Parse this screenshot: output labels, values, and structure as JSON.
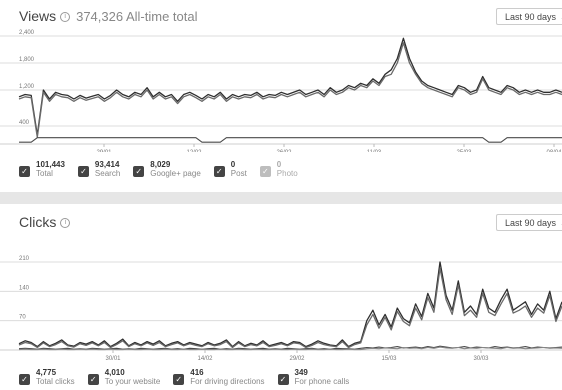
{
  "views": {
    "title": "Views",
    "total_text": "374,326 All-time total",
    "range_label": "Last 90 days",
    "legend": [
      {
        "value": "101,443",
        "label": "Total",
        "checked": true
      },
      {
        "value": "93,414",
        "label": "Search",
        "checked": true
      },
      {
        "value": "8,029",
        "label": "Google+ page",
        "checked": true
      },
      {
        "value": "0",
        "label": "Post",
        "checked": true
      },
      {
        "value": "0",
        "label": "Photo",
        "checked": false
      }
    ]
  },
  "clicks": {
    "title": "Clicks",
    "range_label": "Last 90 days",
    "legend": [
      {
        "value": "4,775",
        "label": "Total clicks",
        "checked": true
      },
      {
        "value": "4,010",
        "label": "To your website",
        "checked": true
      },
      {
        "value": "416",
        "label": "For driving directions",
        "checked": true
      },
      {
        "value": "349",
        "label": "For phone calls",
        "checked": true
      }
    ]
  },
  "chart_data": [
    {
      "type": "line",
      "x_ticks": [
        "29/01",
        "12/02",
        "26/02",
        "11/03",
        "25/03",
        "08/04"
      ],
      "y_ticks": [
        400,
        1200,
        1800,
        2400
      ],
      "ylim": [
        0,
        2400
      ],
      "grid": true,
      "series": [
        {
          "name": "Total",
          "values": [
            1050,
            1100,
            1080,
            200,
            1200,
            1000,
            1150,
            1100,
            1080,
            1000,
            1080,
            1020,
            1060,
            1100,
            1000,
            1080,
            1200,
            1100,
            1050,
            1150,
            1100,
            1250,
            1050,
            1150,
            1050,
            1100,
            950,
            1100,
            1150,
            1080,
            1000,
            1100,
            1050,
            1150,
            1000,
            1100,
            1050,
            1100,
            1080,
            1150,
            1050,
            1100,
            1080,
            1150,
            1100,
            1150,
            1200,
            1100,
            1150,
            1200,
            1100,
            1250,
            1150,
            1200,
            1300,
            1250,
            1350,
            1300,
            1450,
            1350,
            1550,
            1650,
            1900,
            2350,
            1900,
            1600,
            1400,
            1300,
            1250,
            1200,
            1150,
            1100,
            1300,
            1250,
            1150,
            1200,
            1500,
            1250,
            1200,
            1150,
            1300,
            1250,
            1150,
            1200,
            1150,
            1200,
            1150,
            1150,
            1200,
            1150
          ]
        },
        {
          "name": "Search",
          "values": [
            1000,
            1050,
            1030,
            150,
            1150,
            950,
            1100,
            1050,
            1030,
            950,
            1030,
            970,
            1010,
            1050,
            950,
            1030,
            1150,
            1050,
            1000,
            1100,
            1050,
            1200,
            1000,
            1100,
            1000,
            1050,
            900,
            1050,
            1100,
            1030,
            950,
            1050,
            1000,
            1100,
            950,
            1050,
            1000,
            1050,
            1030,
            1100,
            1000,
            1050,
            1030,
            1100,
            1050,
            1100,
            1150,
            1050,
            1100,
            1150,
            1050,
            1200,
            1100,
            1150,
            1250,
            1200,
            1300,
            1250,
            1400,
            1300,
            1500,
            1550,
            1800,
            2250,
            1800,
            1550,
            1350,
            1250,
            1200,
            1150,
            1100,
            1050,
            1250,
            1200,
            1100,
            1150,
            1450,
            1200,
            1150,
            1100,
            1250,
            1200,
            1100,
            1150,
            1100,
            1150,
            1100,
            1100,
            1150,
            1100
          ]
        },
        {
          "name": "Google+ page",
          "values": [
            40,
            40,
            40,
            140,
            140,
            140,
            140,
            140,
            140,
            140,
            140,
            140,
            140,
            140,
            140,
            140,
            140,
            140,
            140,
            140,
            140,
            140,
            140,
            140,
            140,
            140,
            140,
            140,
            140,
            140,
            40,
            40,
            40,
            40,
            140,
            140,
            140,
            140,
            140,
            140,
            140,
            140,
            140,
            140,
            140,
            140,
            140,
            140,
            140,
            140,
            140,
            140,
            140,
            140,
            140,
            140,
            140,
            140,
            140,
            140,
            140,
            140,
            140,
            140,
            140,
            140,
            140,
            140,
            140,
            140,
            140,
            140,
            140,
            140,
            140,
            140,
            140,
            40,
            40,
            40,
            140,
            140,
            140,
            140,
            140,
            140,
            140,
            140,
            140,
            140
          ]
        }
      ]
    },
    {
      "type": "line",
      "x_ticks": [
        "30/01",
        "14/02",
        "29/02",
        "15/03",
        "30/03"
      ],
      "y_ticks": [
        70,
        140,
        210
      ],
      "ylim": [
        0,
        210
      ],
      "grid": true,
      "series": [
        {
          "name": "Total clicks",
          "values": [
            15,
            22,
            18,
            8,
            20,
            10,
            16,
            24,
            12,
            9,
            18,
            14,
            20,
            12,
            22,
            8,
            16,
            26,
            10,
            18,
            12,
            20,
            14,
            22,
            10,
            16,
            20,
            12,
            18,
            14,
            10,
            18,
            12,
            16,
            24,
            8,
            20,
            10,
            16,
            12,
            22,
            10,
            14,
            18,
            12,
            20,
            18,
            8,
            14,
            22,
            16,
            12,
            10,
            24,
            8,
            16,
            20,
            70,
            95,
            60,
            85,
            55,
            100,
            75,
            65,
            110,
            80,
            135,
            100,
            210,
            130,
            95,
            165,
            90,
            105,
            85,
            145,
            100,
            90,
            120,
            145,
            95,
            105,
            115,
            85,
            110,
            95,
            140,
            75,
            115
          ]
        },
        {
          "name": "To your website",
          "values": [
            12,
            18,
            15,
            6,
            17,
            8,
            13,
            20,
            10,
            7,
            15,
            11,
            17,
            10,
            18,
            6,
            13,
            22,
            8,
            15,
            10,
            17,
            11,
            18,
            8,
            13,
            17,
            10,
            15,
            11,
            8,
            15,
            10,
            13,
            20,
            6,
            17,
            8,
            13,
            10,
            18,
            8,
            11,
            15,
            10,
            17,
            15,
            6,
            11,
            18,
            13,
            10,
            8,
            20,
            6,
            13,
            17,
            60,
            85,
            52,
            78,
            48,
            92,
            68,
            58,
            100,
            72,
            125,
            90,
            195,
            120,
            85,
            155,
            82,
            95,
            78,
            135,
            90,
            82,
            110,
            135,
            88,
            95,
            105,
            78,
            100,
            88,
            130,
            68,
            105
          ]
        },
        {
          "name": "For driving directions",
          "values": [
            3,
            4,
            3,
            2,
            4,
            3,
            2,
            3,
            4,
            2,
            3,
            2,
            4,
            3,
            2,
            3,
            4,
            2,
            3,
            2,
            4,
            3,
            2,
            3,
            4,
            2,
            3,
            2,
            4,
            3,
            2,
            3,
            4,
            2,
            3,
            2,
            4,
            3,
            2,
            3,
            4,
            2,
            3,
            2,
            4,
            3,
            2,
            3,
            4,
            2,
            3,
            2,
            4,
            3,
            3,
            2,
            4,
            6,
            5,
            7,
            5,
            6,
            8,
            5,
            6,
            7,
            5,
            8,
            6,
            9,
            7,
            5,
            6,
            8,
            5,
            7,
            6,
            5,
            8,
            6,
            7,
            5,
            6,
            8,
            5,
            7,
            6,
            5,
            6,
            7
          ]
        },
        {
          "name": "For phone calls",
          "values": [
            1,
            2,
            1,
            1,
            2,
            1,
            1,
            2,
            1,
            1,
            2,
            1,
            2,
            1,
            1,
            2,
            1,
            1,
            2,
            1,
            1,
            2,
            1,
            1,
            2,
            1,
            1,
            2,
            1,
            1,
            2,
            1,
            1,
            2,
            1,
            1,
            2,
            1,
            1,
            2,
            1,
            1,
            2,
            1,
            1,
            2,
            1,
            1,
            2,
            1,
            1,
            2,
            1,
            1,
            2,
            1,
            1,
            3,
            4,
            3,
            5,
            4,
            3,
            6,
            4,
            5,
            3,
            6,
            4,
            7,
            5,
            4,
            6,
            3,
            5,
            4,
            6,
            5,
            4,
            3,
            6,
            4,
            5,
            3,
            4,
            5,
            6,
            4,
            5,
            4
          ]
        }
      ]
    }
  ]
}
